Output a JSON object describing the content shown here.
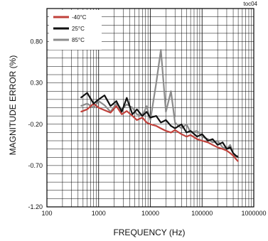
{
  "chart_data": {
    "type": "line",
    "id_label": "toc04",
    "xlabel": "FREQUENCY (Hz)",
    "ylabel": "MAGNITUDE ERROR (%)",
    "x_scale": "log",
    "xlim": [
      100,
      1000000
    ],
    "ylim": [
      -1.2,
      1.2
    ],
    "x_ticks": [
      100,
      1000,
      10000,
      100000,
      1000000
    ],
    "x_tick_labels": [
      "100",
      "1000",
      "10000",
      "100000",
      "1000000"
    ],
    "y_ticks": [
      0.8,
      0.3,
      -0.2,
      -0.7,
      -1.2
    ],
    "y_tick_labels": [
      "0.80",
      "0.30",
      "-0.20",
      "-0.70",
      "-1.20"
    ],
    "grid": true,
    "legend_position": "top-left",
    "series": [
      {
        "name": "-40°C",
        "color": "#c0413b",
        "x": [
          450,
          600,
          800,
          1000,
          1300,
          1700,
          2200,
          2800,
          3500,
          4500,
          5500,
          7000,
          8500,
          10000,
          13000,
          16000,
          20000,
          25000,
          30000,
          40000,
          50000,
          60000,
          80000,
          100000,
          130000,
          160000,
          200000,
          250000,
          300000,
          350000,
          400000,
          450000,
          500000
        ],
        "y": [
          -0.05,
          -0.02,
          0.05,
          0.0,
          -0.03,
          -0.06,
          0.02,
          -0.08,
          -0.04,
          -0.1,
          -0.15,
          -0.12,
          -0.18,
          -0.2,
          -0.22,
          -0.25,
          -0.28,
          -0.3,
          -0.27,
          -0.32,
          -0.35,
          -0.33,
          -0.38,
          -0.4,
          -0.42,
          -0.45,
          -0.48,
          -0.5,
          -0.52,
          -0.55,
          -0.58,
          -0.62,
          -0.65
        ]
      },
      {
        "name": "25°C",
        "color": "#111111",
        "x": [
          450,
          600,
          800,
          1000,
          1300,
          1700,
          2200,
          2800,
          3500,
          4500,
          5500,
          7000,
          8500,
          10000,
          13000,
          16000,
          20000,
          25000,
          30000,
          40000,
          50000,
          60000,
          80000,
          100000,
          130000,
          160000,
          200000,
          250000,
          300000,
          350000,
          400000,
          450000,
          500000
        ],
        "y": [
          0.12,
          0.18,
          0.05,
          0.1,
          0.15,
          0.02,
          0.08,
          -0.05,
          0.12,
          -0.08,
          -0.02,
          -0.1,
          -0.05,
          -0.12,
          -0.1,
          -0.18,
          -0.15,
          -0.22,
          -0.25,
          -0.2,
          -0.3,
          -0.28,
          -0.35,
          -0.32,
          -0.4,
          -0.38,
          -0.45,
          -0.42,
          -0.5,
          -0.48,
          -0.55,
          -0.58,
          -0.6
        ]
      },
      {
        "name": "85°C",
        "color": "#8c8c8c",
        "x": [
          450,
          600,
          800,
          1000,
          1300,
          1700,
          2200,
          2800,
          3500,
          4500,
          5500,
          7000,
          8500,
          10000,
          13000,
          16000,
          20000,
          25000,
          30000,
          40000,
          50000,
          60000,
          80000,
          100000,
          130000,
          160000,
          200000,
          250000,
          300000,
          350000,
          400000,
          450000,
          500000
        ],
        "y": [
          0.02,
          0.05,
          0.0,
          0.08,
          0.03,
          -0.05,
          0.05,
          -0.02,
          0.04,
          0.0,
          -0.08,
          -0.1,
          0.02,
          -0.15,
          0.3,
          0.7,
          -0.05,
          0.2,
          -0.18,
          -0.25,
          -0.2,
          -0.3,
          -0.28,
          -0.35,
          -0.38,
          -0.42,
          -0.4,
          -0.48,
          -0.5,
          -0.45,
          -0.55,
          -0.6,
          -0.58
        ]
      }
    ]
  }
}
